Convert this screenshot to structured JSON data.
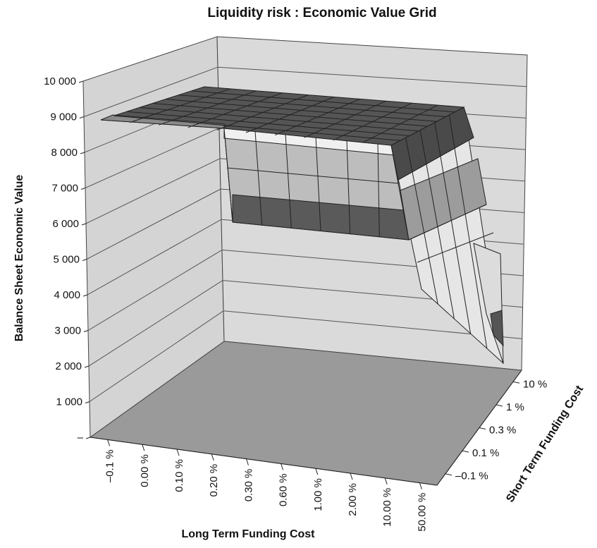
{
  "chart_data": {
    "type": "surface",
    "title": "Liquidity risk : Economic Value Grid",
    "zlabel": "Balance Sheet Economic Value",
    "xlabel": "Long Term Funding Cost",
    "ylabel": "Short Term Funding Cost",
    "z_ticks": [
      "10 000",
      "9 000",
      "8 000",
      "7 000",
      "6 000",
      "5 000",
      "4 000",
      "3 000",
      "2 000",
      "1 000",
      "–"
    ],
    "zlim": [
      0,
      10000
    ],
    "x_categories": [
      "–0.1 %",
      "0.00 %",
      "0.10 %",
      "0.20 %",
      "0.30 %",
      "0.60 %",
      "1.00 %",
      "2.00 %",
      "10.00 %",
      "50.00 %"
    ],
    "y_categories": [
      "–0.1 %",
      "0.1 %",
      "0.3 %",
      "1 %",
      "10 %"
    ],
    "surface_level": 9000,
    "edge_drop_min": 1000,
    "grid": true,
    "colors": {
      "wall": "#d4d4d4",
      "floor": "#9a9a9a",
      "surface_dark": "#4a4a4a",
      "surface_mid": "#8c8c8c",
      "surface_light": "#ececec",
      "grid_line": "#333333"
    }
  }
}
